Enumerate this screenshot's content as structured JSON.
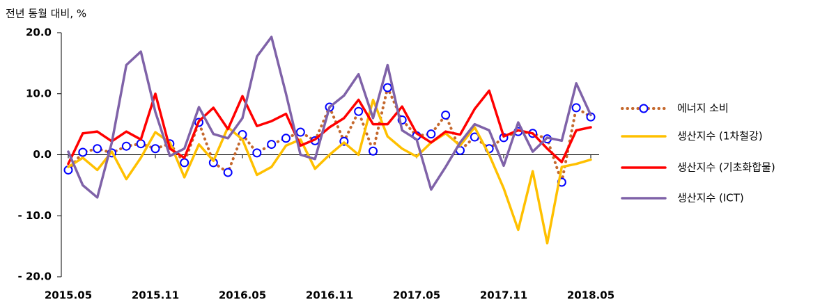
{
  "chart_data": {
    "type": "line",
    "y_label": "전년 동월 대비, %",
    "categories": [
      "2015.05",
      null,
      null,
      null,
      null,
      null,
      "2015.11",
      null,
      null,
      null,
      null,
      null,
      "2016.05",
      null,
      null,
      null,
      null,
      null,
      "2016.11",
      null,
      null,
      null,
      null,
      null,
      "2017.05",
      null,
      null,
      null,
      null,
      null,
      "2017.11",
      null,
      null,
      null,
      null,
      null,
      "2018.05"
    ],
    "ylim": [
      -20,
      20
    ],
    "yticks": [
      {
        "value": -20,
        "label": "- 20.0"
      },
      {
        "value": -10,
        "label": "- 10.0"
      },
      {
        "value": 0,
        "label": "0.0"
      },
      {
        "value": 10,
        "label": "10.0"
      },
      {
        "value": 20,
        "label": "20.0"
      }
    ],
    "legend": "right",
    "series": [
      {
        "name": "에너지 소비",
        "color": "#c5692e",
        "marker_color": "#0000ff",
        "style": "dotted-marker",
        "values": [
          -2.5,
          0.4,
          1.0,
          0.3,
          1.4,
          1.8,
          1.0,
          1.8,
          -1.3,
          5.3,
          -1.3,
          -2.9,
          3.3,
          0.3,
          1.7,
          2.7,
          3.7,
          2.3,
          7.8,
          2.2,
          7.1,
          0.6,
          11.0,
          5.7,
          3.1,
          3.4,
          6.5,
          0.7,
          2.9,
          1.0,
          2.8,
          3.8,
          3.5,
          2.6,
          -4.5,
          7.7,
          6.2
        ]
      },
      {
        "name": "생산지수 (1차철강)",
        "color": "#ffc000",
        "style": "solid",
        "values": [
          -2,
          -0.5,
          -2.5,
          0.5,
          -4,
          -0.5,
          3.7,
          2,
          -3.7,
          1.7,
          -1,
          4.5,
          2.5,
          -3.3,
          -2,
          1.5,
          2.5,
          -2.3,
          0,
          2,
          0,
          9,
          3,
          1,
          -0.3,
          2,
          3.5,
          1.5,
          4.5,
          0,
          -5.5,
          -12.3,
          -2.7,
          -14.5,
          -2,
          -1.5,
          -0.8
        ]
      },
      {
        "name": "생산지수 (기초화합물)",
        "color": "#ff0000",
        "style": "solid",
        "values": [
          -1.5,
          3.5,
          3.8,
          2.2,
          3.8,
          2.5,
          10.0,
          1.0,
          -0.5,
          5.5,
          7.7,
          4.2,
          9.6,
          4.7,
          5.5,
          6.7,
          1.5,
          2.5,
          4.5,
          6,
          9,
          5,
          5,
          7.9,
          3.5,
          2,
          3.8,
          3.3,
          7.5,
          10.5,
          3,
          4,
          3.5,
          1,
          -1.2,
          4,
          4.5
        ]
      },
      {
        "name": "생산지수 (ICT)",
        "color": "#7f62a8",
        "style": "solid",
        "values": [
          0.5,
          -5,
          -7,
          2,
          14.7,
          16.9,
          7,
          -0.2,
          1,
          7.8,
          3.4,
          2.7,
          6,
          16.1,
          19.3,
          10,
          0,
          -0.7,
          7.8,
          9.7,
          13.2,
          6,
          14.7,
          4,
          2.5,
          -5.7,
          -2,
          2,
          5,
          4,
          -1.8,
          5.3,
          0.5,
          2.8,
          2.3,
          11.7,
          6.5
        ]
      }
    ]
  }
}
